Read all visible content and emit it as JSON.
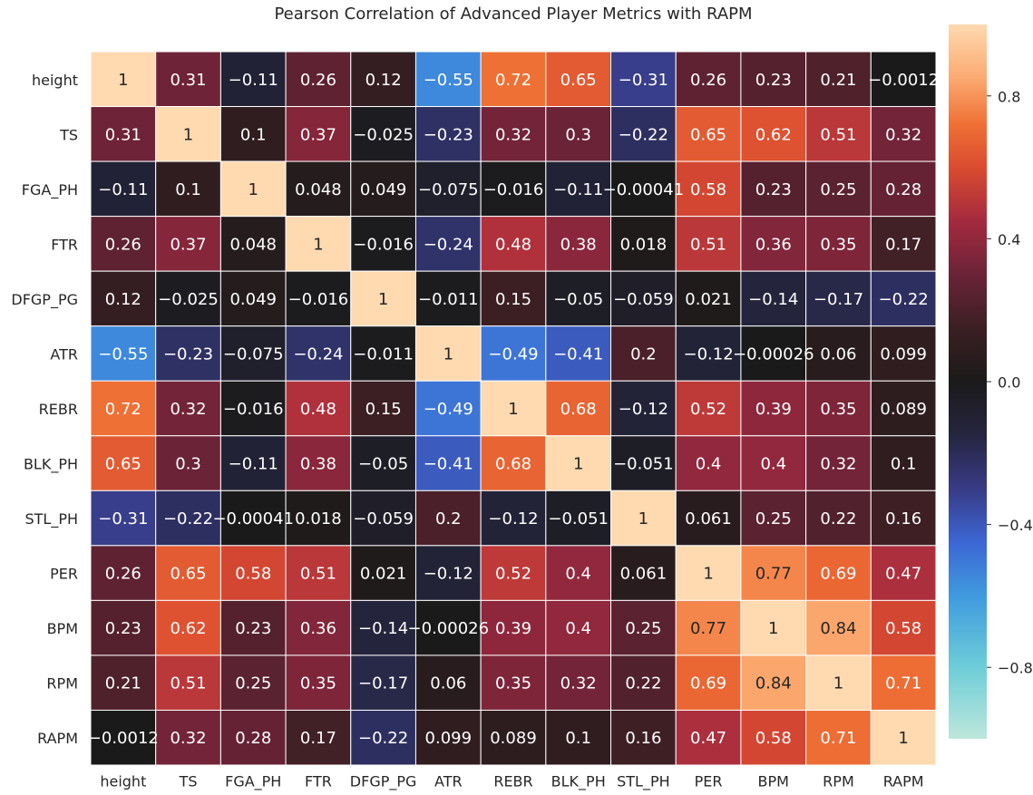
{
  "chart_data": {
    "type": "heatmap",
    "title": "Pearson Correlation of Advanced Player Metrics with RAPM",
    "x_labels": [
      "height",
      "TS",
      "FGA_PH",
      "FTR",
      "DFGP_PG",
      "ATR",
      "REBR",
      "BLK_PH",
      "STL_PH",
      "PER",
      "BPM",
      "RPM",
      "RAPM"
    ],
    "y_labels": [
      "height",
      "TS",
      "FGA_PH",
      "FTR",
      "DFGP_PG",
      "ATR",
      "REBR",
      "BLK_PH",
      "STL_PH",
      "PER",
      "BPM",
      "RPM",
      "RAPM"
    ],
    "values": [
      [
        1,
        0.31,
        -0.11,
        0.26,
        0.12,
        -0.55,
        0.72,
        0.65,
        -0.31,
        0.26,
        0.23,
        0.21,
        -0.0012
      ],
      [
        0.31,
        1,
        0.1,
        0.37,
        -0.025,
        -0.23,
        0.32,
        0.3,
        -0.22,
        0.65,
        0.62,
        0.51,
        0.32
      ],
      [
        -0.11,
        0.1,
        1,
        0.048,
        0.049,
        -0.075,
        -0.016,
        -0.11,
        -0.00041,
        0.58,
        0.23,
        0.25,
        0.28
      ],
      [
        0.26,
        0.37,
        0.048,
        1,
        -0.016,
        -0.24,
        0.48,
        0.38,
        0.018,
        0.51,
        0.36,
        0.35,
        0.17
      ],
      [
        0.12,
        -0.025,
        0.049,
        -0.016,
        1,
        -0.011,
        0.15,
        -0.05,
        -0.059,
        0.021,
        -0.14,
        -0.17,
        -0.22
      ],
      [
        -0.55,
        -0.23,
        -0.075,
        -0.24,
        -0.011,
        1,
        -0.49,
        -0.41,
        0.2,
        -0.12,
        -0.00026,
        0.06,
        0.099
      ],
      [
        0.72,
        0.32,
        -0.016,
        0.48,
        0.15,
        -0.49,
        1,
        0.68,
        -0.12,
        0.52,
        0.39,
        0.35,
        0.089
      ],
      [
        0.65,
        0.3,
        -0.11,
        0.38,
        -0.05,
        -0.41,
        0.68,
        1,
        -0.051,
        0.4,
        0.4,
        0.32,
        0.1
      ],
      [
        -0.31,
        -0.22,
        -0.00041,
        0.018,
        -0.059,
        0.2,
        -0.12,
        -0.051,
        1,
        0.061,
        0.25,
        0.22,
        0.16
      ],
      [
        0.26,
        0.65,
        0.58,
        0.51,
        0.021,
        -0.12,
        0.52,
        0.4,
        0.061,
        1,
        0.77,
        0.69,
        0.47
      ],
      [
        0.23,
        0.62,
        0.23,
        0.36,
        -0.14,
        -0.00026,
        0.39,
        0.4,
        0.25,
        0.77,
        1,
        0.84,
        0.58
      ],
      [
        0.21,
        0.51,
        0.25,
        0.35,
        -0.17,
        0.06,
        0.35,
        0.32,
        0.22,
        0.69,
        0.84,
        1,
        0.71
      ],
      [
        -0.0012,
        0.32,
        0.28,
        0.17,
        -0.22,
        0.099,
        0.089,
        0.1,
        0.16,
        0.47,
        0.58,
        0.71,
        1
      ]
    ],
    "colorbar": {
      "vmin": -1,
      "vmax": 1,
      "ticks": [
        -0.8,
        -0.4,
        0.0,
        0.4,
        0.8
      ],
      "tick_labels": [
        "−0.8",
        "−0.4",
        "0.0",
        "0.4",
        "0.8"
      ]
    },
    "colormap": "icefire",
    "colors": {
      "stops": [
        {
          "v": -1.0,
          "c": "#bde7db"
        },
        {
          "v": -0.8,
          "c": "#6dcdd8"
        },
        {
          "v": -0.6,
          "c": "#3f9ade"
        },
        {
          "v": -0.45,
          "c": "#3c67d4"
        },
        {
          "v": -0.3,
          "c": "#383b86"
        },
        {
          "v": -0.15,
          "c": "#252540"
        },
        {
          "v": 0.0,
          "c": "#1b1a1a"
        },
        {
          "v": 0.15,
          "c": "#3b1f23"
        },
        {
          "v": 0.3,
          "c": "#6b2338"
        },
        {
          "v": 0.45,
          "c": "#a52a3f"
        },
        {
          "v": 0.6,
          "c": "#da4c30"
        },
        {
          "v": 0.72,
          "c": "#ef7035"
        },
        {
          "v": 0.85,
          "c": "#fbaa71"
        },
        {
          "v": 1.0,
          "c": "#ffd9b0"
        }
      ],
      "grid_line": "#ffffff"
    }
  }
}
